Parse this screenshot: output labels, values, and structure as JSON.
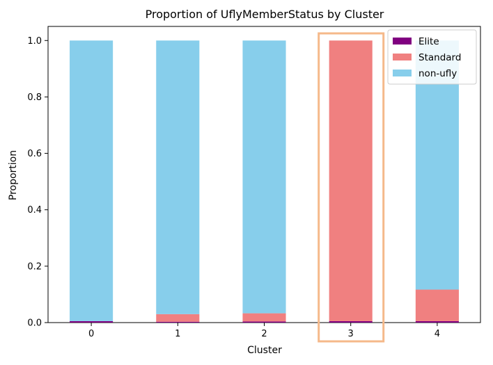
{
  "chart_data": {
    "type": "bar",
    "stacked": true,
    "title": "Proportion of UflyMemberStatus by Cluster",
    "xlabel": "Cluster",
    "ylabel": "Proportion",
    "categories": [
      "0",
      "1",
      "2",
      "3",
      "4"
    ],
    "ylim": [
      0,
      1.05
    ],
    "yticks": [
      0.0,
      0.2,
      0.4,
      0.6,
      0.8,
      1.0
    ],
    "ytick_labels": [
      "0.0",
      "0.2",
      "0.4",
      "0.6",
      "0.8",
      "1.0"
    ],
    "grid": false,
    "legend_position": "top-right",
    "series": [
      {
        "name": "Elite",
        "color": "#800080",
        "values": [
          0.005,
          0.003,
          0.004,
          0.005,
          0.005
        ]
      },
      {
        "name": "Standard",
        "color": "#f08080",
        "values": [
          0.0,
          0.027,
          0.029,
          0.995,
          0.112
        ]
      },
      {
        "name": "non-ufly",
        "color": "#87ceeb",
        "values": [
          0.995,
          0.97,
          0.967,
          0.0,
          0.883
        ]
      }
    ],
    "highlight": {
      "category": "3",
      "color": "#f5b98a"
    }
  }
}
